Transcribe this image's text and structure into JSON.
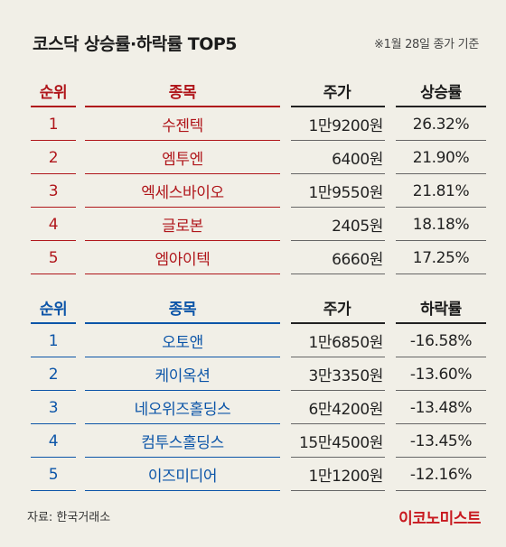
{
  "title": "코스닥 상승률·하락률 TOP5",
  "basis": "※1월 28일 종가 기준",
  "colors": {
    "up": "#b0161b",
    "down": "#0c55a8",
    "background": "#f1efe7"
  },
  "gainers": {
    "headers": [
      "순위",
      "종목",
      "주가",
      "상승률"
    ],
    "rows": [
      [
        "1",
        "수젠텍",
        "1만9200원",
        "26.32%"
      ],
      [
        "2",
        "엠투엔",
        "6400원",
        "21.90%"
      ],
      [
        "3",
        "엑세스바이오",
        "1만9550원",
        "21.81%"
      ],
      [
        "4",
        "글로본",
        "2405원",
        "18.18%"
      ],
      [
        "5",
        "엠아이텍",
        "6660원",
        "17.25%"
      ]
    ]
  },
  "losers": {
    "headers": [
      "순위",
      "종목",
      "주가",
      "하락률"
    ],
    "rows": [
      [
        "1",
        "오토앤",
        "1만6850원",
        "-16.58%"
      ],
      [
        "2",
        "케이옥션",
        "3만3350원",
        "-13.60%"
      ],
      [
        "3",
        "네오위즈홀딩스",
        "6만4200원",
        "-13.48%"
      ],
      [
        "4",
        "컴투스홀딩스",
        "15만4500원",
        "-13.45%"
      ],
      [
        "5",
        "이즈미디어",
        "1만1200원",
        "-12.16%"
      ]
    ]
  },
  "source": "자료: 한국거래소",
  "brand": "이코노미스트"
}
